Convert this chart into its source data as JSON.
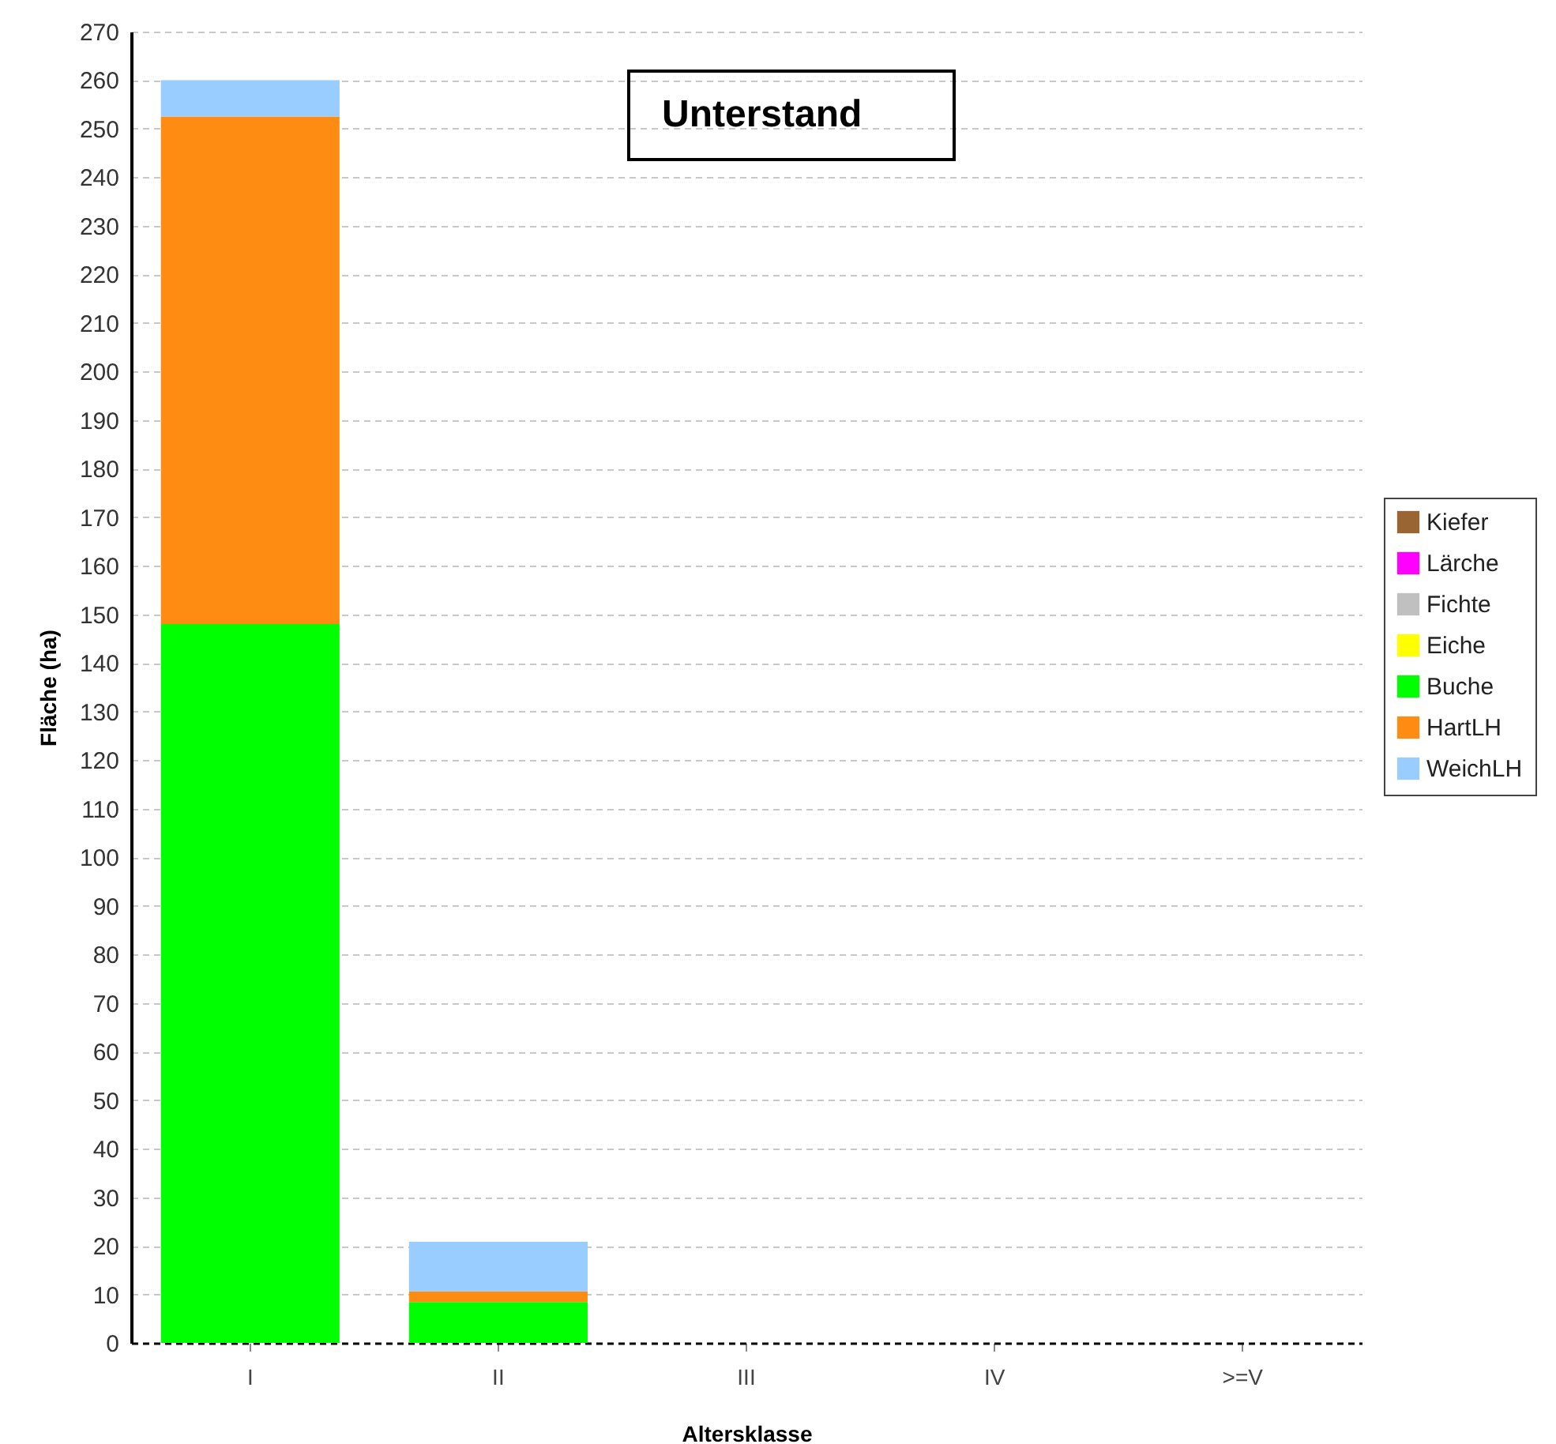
{
  "chart_data": {
    "type": "bar",
    "title": "Unterstand",
    "xlabel": "Altersklasse",
    "ylabel": "Fläche (ha)",
    "categories": [
      "I",
      "II",
      "III",
      "IV",
      ">=V"
    ],
    "stacked": true,
    "series": [
      {
        "name": "Buche",
        "color": "#00ff00",
        "values": [
          148,
          8.4,
          0,
          0,
          0
        ]
      },
      {
        "name": "HartLH",
        "color": "#ff8c12",
        "values": [
          104.5,
          2.2,
          0,
          0,
          0
        ]
      },
      {
        "name": "WeichLH",
        "color": "#99ccff",
        "values": [
          7.5,
          10.2,
          0,
          0,
          0
        ]
      },
      {
        "name": "Kiefer",
        "color": "#996633",
        "values": [
          0,
          0,
          0,
          0,
          0
        ]
      },
      {
        "name": "Lärche",
        "color": "#ff00ff",
        "values": [
          0,
          0,
          0,
          0,
          0
        ]
      },
      {
        "name": "Fichte",
        "color": "#c0c0c0",
        "values": [
          0,
          0,
          0,
          0,
          0
        ]
      },
      {
        "name": "Eiche",
        "color": "#ffff00",
        "values": [
          0,
          0,
          0,
          0,
          0
        ]
      }
    ],
    "ylim": [
      0,
      270
    ],
    "yticks": [
      0,
      10,
      20,
      30,
      40,
      50,
      60,
      70,
      80,
      90,
      100,
      110,
      120,
      130,
      140,
      150,
      160,
      170,
      180,
      190,
      200,
      210,
      220,
      230,
      240,
      250,
      260,
      270
    ],
    "grid": "y",
    "legend": "right"
  }
}
